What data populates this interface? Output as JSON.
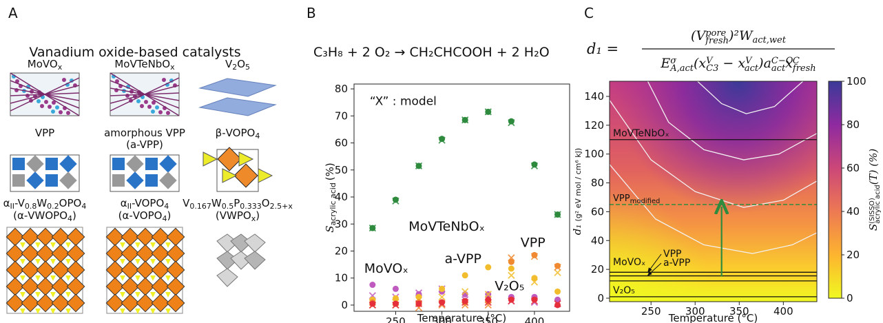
{
  "panel_labels": [
    "A",
    "B",
    "C"
  ],
  "panel_a": {
    "title": "Vanadium oxide-based catalysts",
    "catalysts": [
      {
        "label": [
          [
            {
              "base": "MoVO"
            },
            {
              "sub": "x"
            }
          ]
        ]
      },
      {
        "label": [
          [
            {
              "base": "MoVTeNbO"
            },
            {
              "sub": "x"
            }
          ]
        ]
      },
      {
        "label": [
          [
            {
              "base": "V"
            },
            {
              "sub": "2"
            },
            {
              "base": "O"
            },
            {
              "sub": "5"
            }
          ]
        ]
      },
      {
        "label": [
          [
            {
              "base": "VPP"
            }
          ]
        ]
      },
      {
        "label": [
          [
            {
              "base": "amorphous VPP"
            }
          ],
          [
            {
              "base": "(a-VPP)"
            }
          ]
        ]
      },
      {
        "label": [
          [
            {
              "base": "β-VOPO"
            },
            {
              "sub": "4"
            }
          ]
        ]
      },
      {
        "label": [
          [
            {
              "base": "α"
            },
            {
              "sub": "II"
            },
            {
              "base": "-V"
            },
            {
              "sub": "0.8"
            },
            {
              "base": "W"
            },
            {
              "sub": "0.2"
            },
            {
              "base": "OPO"
            },
            {
              "sub": "4"
            }
          ],
          [
            {
              "base": "(α-VWOPO"
            },
            {
              "sub": "4"
            },
            {
              "base": ")"
            }
          ]
        ]
      },
      {
        "label": [
          [
            {
              "base": "α"
            },
            {
              "sub": "II"
            },
            {
              "base": "-VOPO"
            },
            {
              "sub": "4"
            }
          ],
          [
            {
              "base": "(α-VOPO"
            },
            {
              "sub": "4"
            },
            {
              "base": ")"
            }
          ]
        ]
      },
      {
        "label": [
          [
            {
              "base": "V"
            },
            {
              "sub": "0.167"
            },
            {
              "base": "W"
            },
            {
              "sub": "0.5"
            },
            {
              "base": "P"
            },
            {
              "sub": "0.333"
            },
            {
              "base": "O"
            },
            {
              "sub": "2.5+x"
            }
          ],
          [
            {
              "base": "(VWPO"
            },
            {
              "sub": "x"
            },
            {
              "base": ")"
            }
          ]
        ]
      }
    ]
  },
  "chart_data": [
    {
      "type": "scatter",
      "equation": "C₃H₈ + 2 O₂ → CH₂CHCOOH + 2 H₂O",
      "annotation": "“X” : model",
      "x_label": "Temperature (°C)",
      "y_label": "S",
      "y_label_sub": "acrylic acid",
      "y_label_unit": "(%)",
      "x": [
        225,
        250,
        275,
        300,
        325,
        350,
        375,
        400,
        425
      ],
      "xlim": [
        205,
        438
      ],
      "xticks": [
        250,
        300,
        350,
        400
      ],
      "ylim": [
        -2.3,
        81.8
      ],
      "yticks": [
        0,
        10,
        20,
        30,
        40,
        50,
        60,
        70,
        80
      ],
      "series": [
        {
          "name": "MoVTeNbOₓ",
          "color": "#2e8b3e",
          "values": [
            28.5,
            39,
            51.5,
            61.5,
            68.5,
            71.5,
            68,
            52,
            33.5
          ],
          "model_values": [
            28.5,
            38.5,
            51.5,
            61,
            68.5,
            71.5,
            67.5,
            51.5,
            33.5
          ]
        },
        {
          "name": "MoVOₓ",
          "color": "#bf5bbf",
          "values": [
            7.5,
            6,
            4,
            5,
            4,
            4,
            3,
            3,
            2
          ],
          "model_values": [
            3.5,
            3,
            4.5,
            6,
            2,
            2,
            1.5,
            1,
            0.5
          ]
        },
        {
          "name": "a-VPP",
          "color": "#f2bd2c",
          "values": [
            2,
            2.5,
            3,
            6,
            11,
            14,
            13.5,
            10,
            5
          ],
          "model_values": [
            1,
            1,
            2,
            3,
            5,
            4,
            11,
            8.5,
            12
          ]
        },
        {
          "name": "VPP",
          "color": "#f08a32",
          "values": [
            1,
            0.5,
            1,
            1,
            1,
            1.5,
            16,
            18.5,
            14.5
          ],
          "model_values": [
            0,
            0,
            -1,
            0,
            0,
            0,
            17.5,
            18,
            14
          ]
        },
        {
          "name": "V₂O₅",
          "color": "#e5303c",
          "values": [
            0.5,
            0.5,
            0.5,
            1,
            1.5,
            2,
            2,
            2,
            0
          ],
          "model_values": [
            0,
            0,
            0.5,
            0.5,
            1,
            1,
            1.5,
            1.5,
            0.5
          ]
        }
      ]
    },
    {
      "type": "heatmap",
      "formula_lhs": "d₁ =",
      "formula_numerator": [
        {
          "base": "(V"
        },
        {
          "sup": "pore",
          "sub": "fresh"
        },
        {
          "base": ")²W"
        },
        {
          "sub": "act,wet"
        }
      ],
      "formula_denominator": [
        {
          "base": "E"
        },
        {
          "sup": "σ",
          "sub": "A,act"
        },
        {
          "base": "(x"
        },
        {
          "sup": "V",
          "sub": "C3"
        },
        {
          "base": " − x"
        },
        {
          "sup": "V",
          "sub": "act"
        },
        {
          "base": ")a"
        },
        {
          "sup": "C−O",
          "sub": "act"
        },
        {
          "base": "x"
        },
        {
          "sup": "C",
          "sub": "fresh"
        }
      ],
      "x_label": "Temperature (°C)",
      "y_label": "d₁",
      "y_label_unit": "(g² eV mol / cm⁶ kJ)",
      "xlim": [
        203,
        438
      ],
      "xticks": [
        250,
        300,
        350,
        400
      ],
      "ylim": [
        -2.4,
        150.5
      ],
      "yticks": [
        0,
        20,
        40,
        60,
        80,
        100,
        120,
        140
      ],
      "colorbar": {
        "label": "S",
        "label_sup": "(SISSO)",
        "label_sub": "acrylic acid",
        "label_tail": "(T) (%)",
        "lim": [
          0,
          100
        ],
        "ticks": [
          0,
          20,
          40,
          60,
          80,
          100
        ]
      },
      "lines": [
        {
          "name": "MoVTeNbOₓ",
          "value": 110,
          "color": "#111111"
        },
        {
          "name": "VPP",
          "name_sub": "modified",
          "value": 65,
          "color": "#2e8b3e",
          "dashed": true
        },
        {
          "name": "VPP",
          "value": 18,
          "color": "#111111"
        },
        {
          "name": "a-VPP",
          "value": 15.5,
          "color": "#111111"
        },
        {
          "name": "MoVOₓ",
          "value": 12,
          "color": "#111111"
        },
        {
          "name": "V₂O₅",
          "value": 1,
          "color": "#111111"
        }
      ],
      "arrow": {
        "x": 330,
        "from": 15,
        "to": 65,
        "color": "#2e8b3e"
      }
    }
  ]
}
